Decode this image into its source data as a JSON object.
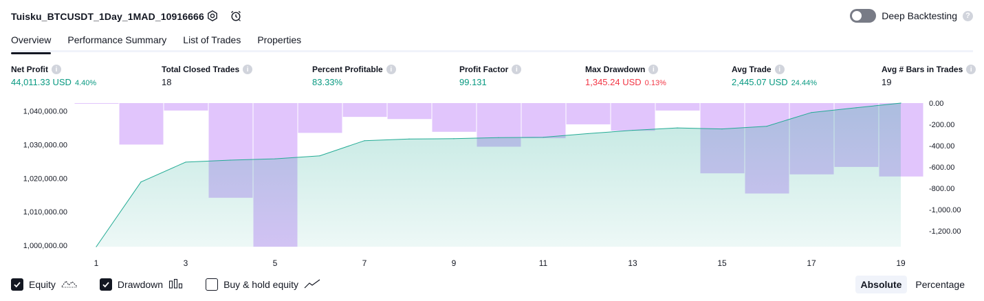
{
  "header": {
    "title": "Tuisku_BTCUSDT_1Day_1MAD_10916666",
    "settings_icon": "gear-icon",
    "alert_icon": "alarm-clock-icon",
    "deep_backtesting_label": "Deep Backtesting",
    "deep_backtesting_enabled": false,
    "help_glyph": "?"
  },
  "tabs": [
    {
      "label": "Overview",
      "active": true
    },
    {
      "label": "Performance Summary",
      "active": false
    },
    {
      "label": "List of Trades",
      "active": false
    },
    {
      "label": "Properties",
      "active": false
    }
  ],
  "metrics": [
    {
      "label": "Net Profit",
      "value": "44,011.33 USD",
      "pct": "4.40%",
      "color": "#089981"
    },
    {
      "label": "Total Closed Trades",
      "value": "18",
      "pct": "",
      "color": "#131722"
    },
    {
      "label": "Percent Profitable",
      "value": "83.33%",
      "pct": "",
      "color": "#089981"
    },
    {
      "label": "Profit Factor",
      "value": "99.131",
      "pct": "",
      "color": "#089981"
    },
    {
      "label": "Max Drawdown",
      "value": "1,345.24 USD",
      "pct": "0.13%",
      "color": "#f23645"
    },
    {
      "label": "Avg Trade",
      "value": "2,445.07 USD",
      "pct": "24.44%",
      "color": "#089981"
    },
    {
      "label": "Avg # Bars in Trades",
      "value": "19",
      "pct": "",
      "color": "#131722"
    }
  ],
  "info_glyph": "i",
  "chart_data": {
    "type": "line",
    "x": [
      1,
      2,
      3,
      4,
      5,
      6,
      7,
      8,
      9,
      10,
      11,
      12,
      13,
      14,
      15,
      16,
      17,
      18,
      19
    ],
    "xticks": [
      "1",
      "3",
      "5",
      "7",
      "9",
      "11",
      "13",
      "15",
      "17",
      "19"
    ],
    "series": [
      {
        "axis": "left",
        "type": "area",
        "values": [
          999600,
          1018900,
          1024800,
          1025400,
          1025800,
          1026700,
          1031200,
          1031700,
          1031800,
          1032100,
          1032200,
          1033300,
          1034300,
          1035000,
          1034700,
          1035500,
          1039600,
          1041000,
          1042400
        ],
        "color": "#22ab94"
      },
      {
        "axis": "right",
        "type": "bar",
        "values": [
          0,
          -390,
          -70,
          -890,
          -1350,
          -280,
          -130,
          -150,
          -270,
          -410,
          -330,
          -200,
          -260,
          -70,
          -660,
          -850,
          -670,
          -600,
          -690
        ],
        "color": "#e1c5fc"
      }
    ],
    "left_yticks": [
      "1,040,000.00",
      "1,030,000.00",
      "1,020,000.00",
      "1,010,000.00",
      "1,000,000.00"
    ],
    "left_ytick_values": [
      1040000,
      1030000,
      1020000,
      1010000,
      1000000
    ],
    "left_ylim": [
      999600,
      1042400
    ],
    "right_yticks": [
      "0.00",
      "-200.00",
      "-400.00",
      "-600.00",
      "-800.00",
      "-1,000.00",
      "-1,200.00"
    ],
    "right_ytick_values": [
      0,
      -200,
      -400,
      -600,
      -800,
      -1000,
      -1200
    ],
    "right_ylim": [
      -1350,
      0
    ],
    "grid": false
  },
  "legend": [
    {
      "label": "Equity",
      "checked": true,
      "icon": "equity-line-icon"
    },
    {
      "label": "Drawdown",
      "checked": true,
      "icon": "drawdown-bars-icon"
    },
    {
      "label": "Buy & hold equity",
      "checked": false,
      "icon": "buy-hold-line-icon"
    }
  ],
  "mode": {
    "absolute_label": "Absolute",
    "percentage_label": "Percentage",
    "selected": "absolute"
  }
}
